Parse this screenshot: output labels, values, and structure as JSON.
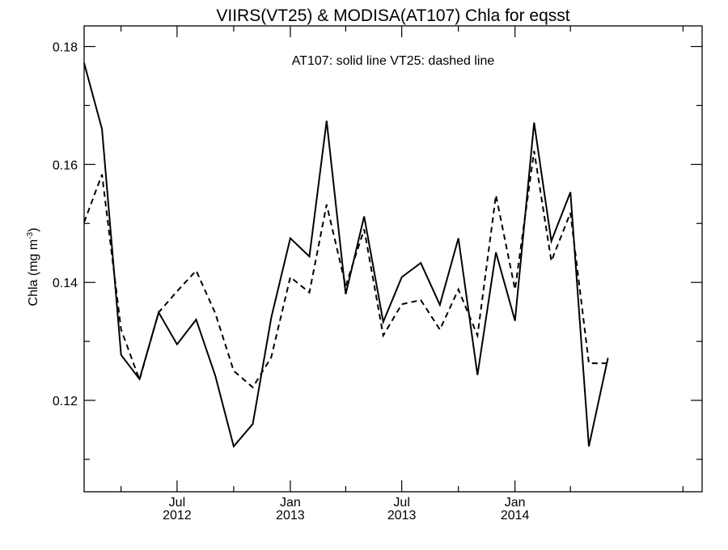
{
  "chart_data": {
    "type": "line",
    "title": "VIIRS(VT25) & MODISA(AT107)  Chla for eqsst",
    "annotation": "AT107: solid line   VT25: dashed line",
    "ylabel": "Chla (mg m",
    "ylabel_sup": "-3",
    "ylabel_close": ")",
    "ylim": [
      0.1045,
      0.1835
    ],
    "xlim": [
      "2012-02-01",
      "2014-11-01"
    ],
    "y_ticks": [
      0.12,
      0.14,
      0.16,
      0.18
    ],
    "y_tick_labels": [
      "0.12",
      "0.14",
      "0.16",
      "0.18"
    ],
    "y_minor_ticks": [
      0.11,
      0.13,
      0.15,
      0.17
    ],
    "x_ticks": [
      {
        "date": "2012-07-01",
        "label_top": "Jul",
        "label_bottom": "2012"
      },
      {
        "date": "2013-01-01",
        "label_top": "Jan",
        "label_bottom": "2013"
      },
      {
        "date": "2013-07-01",
        "label_top": "Jul",
        "label_bottom": "2013"
      },
      {
        "date": "2014-01-01",
        "label_top": "Jan",
        "label_bottom": "2014"
      }
    ],
    "x_minor_ticks": [
      "2012-04-01",
      "2012-10-01",
      "2013-04-01",
      "2013-10-01",
      "2014-04-01",
      "2014-10-01"
    ],
    "grid": false,
    "legend": "none",
    "x": [
      "2012-02",
      "2012-03",
      "2012-04",
      "2012-05",
      "2012-06",
      "2012-07",
      "2012-08",
      "2012-09",
      "2012-10",
      "2012-11",
      "2012-12",
      "2013-01",
      "2013-02",
      "2013-03",
      "2013-04",
      "2013-05",
      "2013-06",
      "2013-07",
      "2013-08",
      "2013-09",
      "2013-10",
      "2013-11",
      "2013-12",
      "2014-01",
      "2014-02",
      "2014-03",
      "2014-04",
      "2014-05",
      "2014-06",
      "2014-07",
      "2014-08",
      "2014-09",
      "2014-10",
      "2014-11"
    ],
    "series": [
      {
        "key": "AT107",
        "style": "solid",
        "color": "#000000",
        "points": [
          [
            "2012-02-01",
            0.1772
          ],
          [
            "2012-03-01",
            0.166
          ],
          [
            "2012-04-01",
            0.1277
          ],
          [
            "2012-05-01",
            0.1236
          ],
          [
            "2012-06-01",
            0.1349
          ],
          [
            "2012-07-01",
            0.1295
          ],
          [
            "2012-08-01",
            0.1337
          ],
          [
            "2012-09-01",
            0.1242
          ],
          [
            "2012-10-01",
            0.1122
          ],
          [
            "2012-11-01",
            0.116
          ],
          [
            "2012-12-01",
            0.134
          ],
          [
            "2013-01-01",
            0.1475
          ],
          [
            "2013-02-01",
            0.1444
          ],
          [
            "2013-03-01",
            0.1674
          ],
          [
            "2013-04-01",
            0.138
          ],
          [
            "2013-05-01",
            0.1512
          ],
          [
            "2013-06-01",
            0.1333
          ],
          [
            "2013-07-01",
            0.1409
          ],
          [
            "2013-08-01",
            0.1433
          ],
          [
            "2013-09-01",
            0.1362
          ],
          [
            "2013-10-01",
            0.1475
          ],
          [
            "2013-11-01",
            0.1243
          ],
          [
            "2013-12-01",
            0.1451
          ],
          [
            "2014-01-01",
            0.1335
          ],
          [
            "2014-02-01",
            0.1671
          ],
          [
            "2014-03-01",
            0.147
          ],
          [
            "2014-04-01",
            0.1553
          ],
          [
            "2014-05-01",
            0.1122
          ],
          [
            "2014-06-01",
            0.1272
          ]
        ]
      },
      {
        "key": "VT25",
        "style": "dashed",
        "color": "#000000",
        "points": [
          [
            "2012-02-01",
            0.1502
          ],
          [
            "2012-03-01",
            0.1583
          ],
          [
            "2012-04-01",
            0.132
          ],
          [
            "2012-05-01",
            0.1235
          ],
          [
            "2012-06-01",
            0.1349
          ],
          [
            "2012-07-01",
            0.1385
          ],
          [
            "2012-08-01",
            0.142
          ],
          [
            "2012-09-01",
            0.1348
          ],
          [
            "2012-10-01",
            0.125
          ],
          [
            "2012-11-01",
            0.1222
          ],
          [
            "2012-12-01",
            0.1273
          ],
          [
            "2013-01-01",
            0.1409
          ],
          [
            "2013-02-01",
            0.1383
          ],
          [
            "2013-03-01",
            0.1532
          ],
          [
            "2013-04-01",
            0.1394
          ],
          [
            "2013-05-01",
            0.149
          ],
          [
            "2013-06-01",
            0.131
          ],
          [
            "2013-07-01",
            0.1363
          ],
          [
            "2013-08-01",
            0.137
          ],
          [
            "2013-09-01",
            0.132
          ],
          [
            "2013-10-01",
            0.1388
          ],
          [
            "2013-11-01",
            0.131
          ],
          [
            "2013-12-01",
            0.1548
          ],
          [
            "2014-01-01",
            0.1388
          ],
          [
            "2014-02-01",
            0.1623
          ],
          [
            "2014-03-01",
            0.1436
          ],
          [
            "2014-04-01",
            0.1518
          ],
          [
            "2014-05-01",
            0.1263
          ],
          [
            "2014-06-01",
            0.1263
          ]
        ]
      }
    ]
  }
}
